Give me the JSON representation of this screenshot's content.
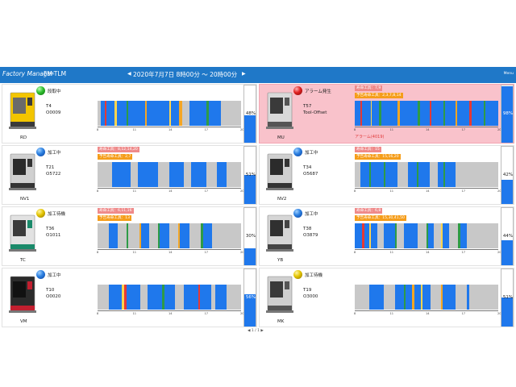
{
  "header": {
    "title": "Factory Manager",
    "subtitle": "FM-TLM",
    "date_range": "2020年7月7日 8時00分 ～ 20時00分",
    "prev": "◀",
    "next": "▶",
    "menu": "Menu"
  },
  "axis_ticks": [
    "8",
    "11",
    "14",
    "17",
    "20"
  ],
  "pager": "◀ 1 / 1 ▶",
  "colors": {
    "header_bg": "#1f78c8",
    "operating": "#1f78ec",
    "idle": "#c8c8c8",
    "setup": "#f5a623",
    "alarm": "#e53935",
    "warning": "#ffd54f",
    "green": "#2e9b46",
    "alarm_panel_bg": "#f9c2cb",
    "life_badge": "#ef8a8a",
    "warn_badge": "#f59d1a"
  },
  "machines": [
    {
      "name": "RD",
      "status": "段取中",
      "status_color": "green",
      "tool": "T4",
      "program": "O0009",
      "life_badge": "",
      "warn_badge": "",
      "alarm_message": "",
      "rate_text": "48%",
      "rate_value": 48,
      "timeline": [
        [
          0,
          0.02,
          "idle"
        ],
        [
          0.02,
          0.05,
          "operating"
        ],
        [
          0.05,
          0.062,
          "alarm"
        ],
        [
          0.062,
          0.12,
          "operating"
        ],
        [
          0.12,
          0.135,
          "warning"
        ],
        [
          0.135,
          0.2,
          "operating"
        ],
        [
          0.2,
          0.215,
          "green"
        ],
        [
          0.215,
          0.33,
          "operating"
        ],
        [
          0.33,
          0.345,
          "setup"
        ],
        [
          0.345,
          0.5,
          "operating"
        ],
        [
          0.5,
          0.513,
          "warning"
        ],
        [
          0.513,
          0.57,
          "operating"
        ],
        [
          0.57,
          0.59,
          "setup"
        ],
        [
          0.59,
          0.64,
          "idle"
        ],
        [
          0.64,
          0.76,
          "operating"
        ],
        [
          0.76,
          0.775,
          "green"
        ],
        [
          0.775,
          0.86,
          "operating"
        ],
        [
          0.86,
          1.0,
          "idle"
        ]
      ]
    },
    {
      "name": "MU",
      "status": "アラーム発生",
      "status_color": "red",
      "tool": "T57",
      "program": "Tool-Offset",
      "life_badge": "寿命工具：7,9",
      "warn_badge": "予告寿命工具：2,3,7,8,14",
      "alarm_message": "アラーム(4019)",
      "rate_text": "98%",
      "rate_value": 98,
      "timeline": [
        [
          0,
          0.04,
          "operating"
        ],
        [
          0.04,
          0.05,
          "alarm"
        ],
        [
          0.05,
          0.11,
          "operating"
        ],
        [
          0.11,
          0.12,
          "warning"
        ],
        [
          0.12,
          0.17,
          "operating"
        ],
        [
          0.17,
          0.185,
          "green"
        ],
        [
          0.185,
          0.3,
          "operating"
        ],
        [
          0.3,
          0.315,
          "setup"
        ],
        [
          0.315,
          0.44,
          "operating"
        ],
        [
          0.44,
          0.455,
          "green"
        ],
        [
          0.455,
          0.52,
          "operating"
        ],
        [
          0.52,
          0.535,
          "alarm"
        ],
        [
          0.535,
          0.62,
          "operating"
        ],
        [
          0.62,
          0.632,
          "green"
        ],
        [
          0.632,
          0.7,
          "operating"
        ],
        [
          0.7,
          0.712,
          "setup"
        ],
        [
          0.712,
          0.8,
          "operating"
        ],
        [
          0.8,
          0.812,
          "alarm"
        ],
        [
          0.812,
          0.9,
          "operating"
        ],
        [
          0.9,
          0.912,
          "green"
        ],
        [
          0.912,
          1.0,
          "operating"
        ]
      ]
    },
    {
      "name": "NV1",
      "status": "加工中",
      "status_color": "blue",
      "tool": "T21",
      "program": "O5722",
      "life_badge": "寿命工具：8,12,14,20",
      "warn_badge": "予告寿命工具：2,7",
      "alarm_message": "",
      "rate_text": "51%",
      "rate_value": 51,
      "timeline": [
        [
          0,
          0.1,
          "idle"
        ],
        [
          0.1,
          0.23,
          "operating"
        ],
        [
          0.23,
          0.28,
          "idle"
        ],
        [
          0.28,
          0.42,
          "operating"
        ],
        [
          0.42,
          0.5,
          "idle"
        ],
        [
          0.5,
          0.6,
          "operating"
        ],
        [
          0.6,
          0.65,
          "idle"
        ],
        [
          0.65,
          0.76,
          "operating"
        ],
        [
          0.76,
          0.83,
          "idle"
        ],
        [
          0.83,
          0.9,
          "operating"
        ],
        [
          0.9,
          1.0,
          "idle"
        ]
      ]
    },
    {
      "name": "NV2",
      "status": "加工中",
      "status_color": "blue",
      "tool": "T34",
      "program": "O5687",
      "life_badge": "寿命工具：15",
      "warn_badge": "予告寿命工具：15,16,20",
      "alarm_message": "",
      "rate_text": "42%",
      "rate_value": 42,
      "timeline": [
        [
          0,
          0.04,
          "idle"
        ],
        [
          0.04,
          0.1,
          "operating"
        ],
        [
          0.1,
          0.115,
          "green"
        ],
        [
          0.115,
          0.2,
          "operating"
        ],
        [
          0.2,
          0.215,
          "green"
        ],
        [
          0.215,
          0.3,
          "operating"
        ],
        [
          0.3,
          0.37,
          "idle"
        ],
        [
          0.37,
          0.43,
          "operating"
        ],
        [
          0.43,
          0.445,
          "green"
        ],
        [
          0.445,
          0.52,
          "operating"
        ],
        [
          0.52,
          0.58,
          "idle"
        ],
        [
          0.58,
          0.62,
          "operating"
        ],
        [
          0.62,
          0.632,
          "green"
        ],
        [
          0.632,
          0.7,
          "operating"
        ],
        [
          0.7,
          1.0,
          "idle"
        ]
      ]
    },
    {
      "name": "TC",
      "status": "加工待機",
      "status_color": "yellow",
      "tool": "T36",
      "program": "O1011",
      "life_badge": "寿命工具：6,11,16",
      "warn_badge": "予告寿命工具：13",
      "alarm_message": "",
      "rate_text": "30%",
      "rate_value": 30,
      "timeline": [
        [
          0,
          0.08,
          "idle"
        ],
        [
          0.08,
          0.14,
          "operating"
        ],
        [
          0.14,
          0.2,
          "idle"
        ],
        [
          0.2,
          0.215,
          "green"
        ],
        [
          0.215,
          0.29,
          "idle"
        ],
        [
          0.29,
          0.305,
          "setup"
        ],
        [
          0.305,
          0.36,
          "operating"
        ],
        [
          0.36,
          0.42,
          "idle"
        ],
        [
          0.42,
          0.433,
          "green"
        ],
        [
          0.433,
          0.5,
          "operating"
        ],
        [
          0.5,
          0.56,
          "idle"
        ],
        [
          0.56,
          0.575,
          "setup"
        ],
        [
          0.575,
          0.64,
          "operating"
        ],
        [
          0.64,
          0.72,
          "idle"
        ],
        [
          0.72,
          0.735,
          "green"
        ],
        [
          0.735,
          0.8,
          "operating"
        ],
        [
          0.8,
          1.0,
          "idle"
        ]
      ]
    },
    {
      "name": "YB",
      "status": "加工中",
      "status_color": "blue",
      "tool": "T38",
      "program": "O3879",
      "life_badge": "寿命工具：6,8",
      "warn_badge": "予告寿命工具：15,30,41,50",
      "alarm_message": "",
      "rate_text": "44%",
      "rate_value": 44,
      "timeline": [
        [
          0,
          0.05,
          "operating"
        ],
        [
          0.05,
          0.065,
          "alarm"
        ],
        [
          0.065,
          0.1,
          "operating"
        ],
        [
          0.1,
          0.11,
          "warning"
        ],
        [
          0.11,
          0.16,
          "operating"
        ],
        [
          0.16,
          0.2,
          "idle"
        ],
        [
          0.2,
          0.28,
          "operating"
        ],
        [
          0.28,
          0.295,
          "green"
        ],
        [
          0.295,
          0.34,
          "idle"
        ],
        [
          0.34,
          0.44,
          "operating"
        ],
        [
          0.44,
          0.5,
          "idle"
        ],
        [
          0.5,
          0.513,
          "green"
        ],
        [
          0.513,
          0.55,
          "operating"
        ],
        [
          0.55,
          0.6,
          "idle"
        ],
        [
          0.6,
          0.615,
          "warning"
        ],
        [
          0.615,
          0.66,
          "operating"
        ],
        [
          0.66,
          0.72,
          "idle"
        ],
        [
          0.72,
          0.735,
          "green"
        ],
        [
          0.735,
          0.78,
          "operating"
        ],
        [
          0.78,
          1.0,
          "idle"
        ]
      ]
    },
    {
      "name": "VM",
      "status": "加工中",
      "status_color": "blue",
      "tool": "T10",
      "program": "O0020",
      "life_badge": "",
      "warn_badge": "",
      "alarm_message": "",
      "rate_text": "56%",
      "rate_value": 56,
      "timeline": [
        [
          0,
          0.08,
          "idle"
        ],
        [
          0.08,
          0.17,
          "operating"
        ],
        [
          0.17,
          0.183,
          "warning"
        ],
        [
          0.183,
          0.2,
          "alarm"
        ],
        [
          0.2,
          0.3,
          "operating"
        ],
        [
          0.3,
          0.35,
          "idle"
        ],
        [
          0.35,
          0.45,
          "operating"
        ],
        [
          0.45,
          0.465,
          "green"
        ],
        [
          0.465,
          0.54,
          "operating"
        ],
        [
          0.54,
          0.6,
          "idle"
        ],
        [
          0.6,
          0.7,
          "operating"
        ],
        [
          0.7,
          0.712,
          "alarm"
        ],
        [
          0.712,
          0.79,
          "operating"
        ],
        [
          0.79,
          0.82,
          "idle"
        ],
        [
          0.82,
          0.9,
          "operating"
        ],
        [
          0.9,
          1.0,
          "idle"
        ]
      ]
    },
    {
      "name": "MK",
      "status": "加工待機",
      "status_color": "yellow",
      "tool": "T19",
      "program": "O3000",
      "life_badge": "",
      "warn_badge": "",
      "alarm_message": "",
      "rate_text": "51%",
      "rate_value": 51,
      "timeline": [
        [
          0,
          0.1,
          "idle"
        ],
        [
          0.1,
          0.2,
          "operating"
        ],
        [
          0.2,
          0.28,
          "idle"
        ],
        [
          0.28,
          0.34,
          "operating"
        ],
        [
          0.34,
          0.355,
          "green"
        ],
        [
          0.355,
          0.4,
          "operating"
        ],
        [
          0.4,
          0.415,
          "setup"
        ],
        [
          0.415,
          0.46,
          "operating"
        ],
        [
          0.46,
          0.47,
          "warning"
        ],
        [
          0.47,
          0.53,
          "operating"
        ],
        [
          0.53,
          0.6,
          "idle"
        ],
        [
          0.6,
          0.612,
          "setup"
        ],
        [
          0.612,
          0.7,
          "operating"
        ],
        [
          0.7,
          0.78,
          "idle"
        ],
        [
          0.78,
          0.8,
          "operating"
        ],
        [
          0.8,
          1.0,
          "idle"
        ]
      ]
    }
  ]
}
